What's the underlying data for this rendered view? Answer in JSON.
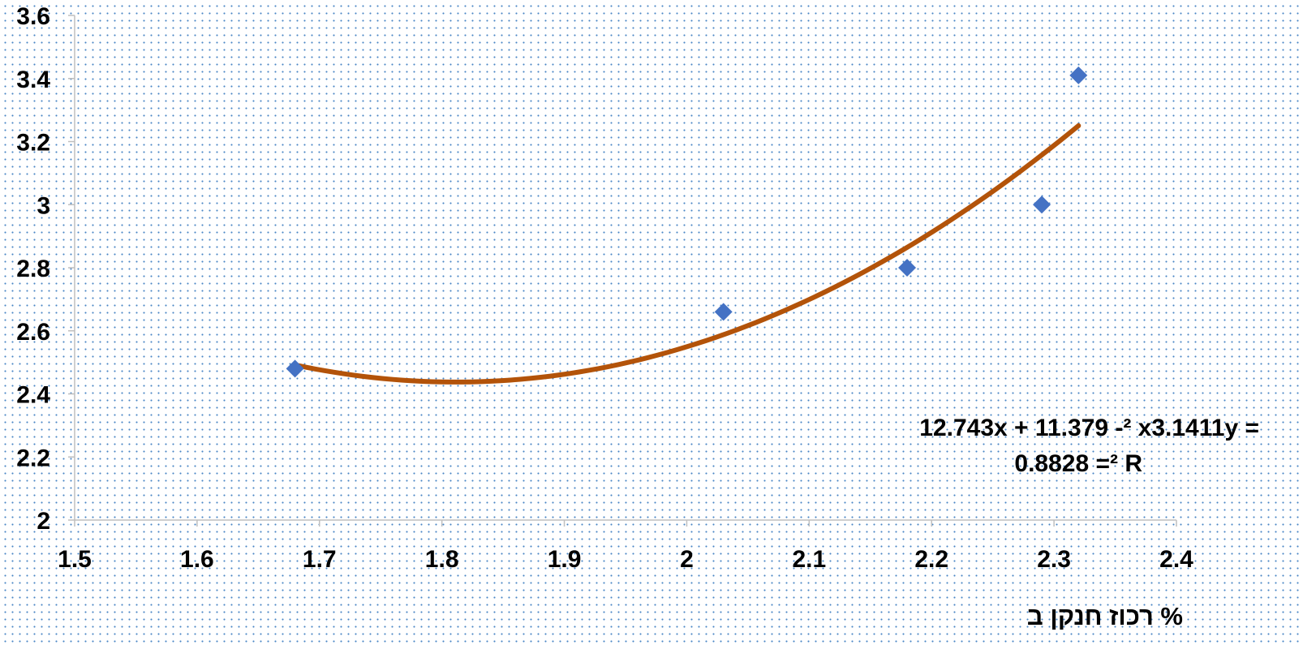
{
  "chart_data": {
    "type": "scatter",
    "title": "",
    "xlabel": "רכוז חנקן ב %",
    "ylabel": "",
    "xlim": [
      1.5,
      2.4
    ],
    "ylim": [
      2,
      3.6
    ],
    "x_ticks": [
      "1.5",
      "1.6",
      "1.7",
      "1.8",
      "1.9",
      "2",
      "2.1",
      "2.2",
      "2.3",
      "2.4"
    ],
    "y_ticks": [
      "2",
      "2.2",
      "2.4",
      "2.6",
      "2.8",
      "3",
      "3.2",
      "3.4",
      "3.6"
    ],
    "grid": false,
    "legend": "none",
    "series": [
      {
        "points": [
          {
            "x": 1.68,
            "y": 2.48
          },
          {
            "x": 2.03,
            "y": 2.66
          },
          {
            "x": 2.18,
            "y": 2.8
          },
          {
            "x": 2.29,
            "y": 3.0
          },
          {
            "x": 2.32,
            "y": 3.41
          }
        ],
        "marker": "diamond",
        "color": "#4472c4"
      }
    ],
    "trendline": {
      "type": "polynomial",
      "order": 2,
      "coefficients": [
        3.1411,
        -11.379,
        12.743
      ],
      "x_range": [
        1.68,
        2.32
      ],
      "color": "#b35309",
      "equation_line1": "12.743x + 11.379 -² x3.1411y =",
      "equation_line2": "0.8828 =² R"
    },
    "axis_color": "#bfbfbf"
  }
}
